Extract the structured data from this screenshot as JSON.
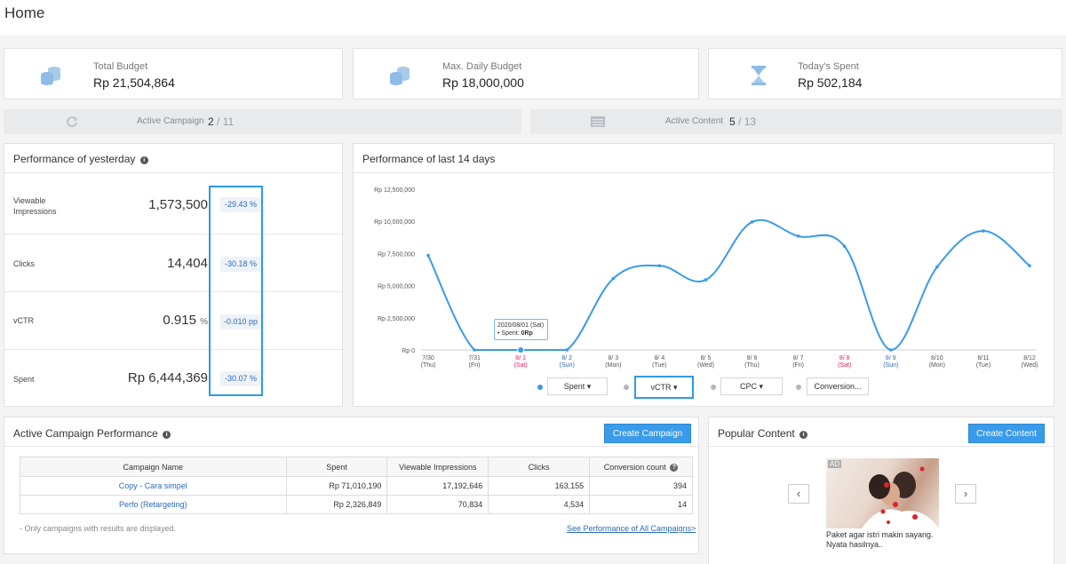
{
  "page": {
    "title": "Home"
  },
  "kpis": {
    "total_budget": {
      "label": "Total Budget",
      "value": "Rp 21,504,864",
      "icon": "coins-icon"
    },
    "max_daily_budget": {
      "label": "Max. Daily Budget",
      "value": "Rp 18,000,000",
      "icon": "coins-icon"
    },
    "todays_spent": {
      "label": "Today's Spent",
      "value": "Rp 502,184",
      "icon": "hourglass-icon"
    }
  },
  "active": {
    "campaign": {
      "label": "Active Campaign",
      "count": "2",
      "total": "/ 11",
      "icon": "refresh-icon"
    },
    "content": {
      "label": "Active Content",
      "count": "5",
      "total": "/ 13",
      "icon": "list-icon"
    }
  },
  "yesterday": {
    "title": "Performance of yesterday",
    "rows": [
      {
        "name": "Viewable Impressions",
        "value": "1,573,500",
        "unit": "",
        "delta": "-29.43 %"
      },
      {
        "name": "Clicks",
        "value": "14,404",
        "unit": "",
        "delta": "-30.18 %"
      },
      {
        "name": "vCTR",
        "value": "0.915",
        "unit": "%",
        "delta": "-0.010 pp"
      },
      {
        "name": "Spent",
        "value": "Rp 6,444,369",
        "unit": "",
        "delta": "-30.07 %"
      }
    ]
  },
  "last14": {
    "title": "Performance of last 14 days",
    "selectors": [
      {
        "label": "Spent ▾",
        "color": "#3a9bea"
      },
      {
        "label": "vCTR ▾",
        "color": "#b0b6c0"
      },
      {
        "label": "CPC ▾",
        "color": "#b0b6c0"
      },
      {
        "label": "Conversion...",
        "color": "#b0b6c0"
      }
    ],
    "tooltip": {
      "date": "2020/08/01 (Sat)",
      "series": "• Spent:",
      "value": "0Rp"
    }
  },
  "chart_data": {
    "type": "line",
    "title": "Performance of last 14 days",
    "xlabel": "",
    "ylabel": "",
    "ylim": [
      0,
      12500000
    ],
    "yticks": [
      "Rp 12,500,000",
      "Rp 10,000,000",
      "Rp 7,500,000",
      "Rp 5,000,000",
      "Rp 2,500,000",
      "Rp 0"
    ],
    "categories": [
      {
        "date": "7/30",
        "day": "(Thu)",
        "color": "#555555"
      },
      {
        "date": "7/31",
        "day": "(Fri)",
        "color": "#555555"
      },
      {
        "date": "8/ 1",
        "day": "(Sat)",
        "color": "#e0245e"
      },
      {
        "date": "8/ 2",
        "day": "(Sun)",
        "color": "#2a6bb8"
      },
      {
        "date": "8/ 3",
        "day": "(Mon)",
        "color": "#555555"
      },
      {
        "date": "8/ 4",
        "day": "(Tue)",
        "color": "#555555"
      },
      {
        "date": "8/ 5",
        "day": "(Wed)",
        "color": "#555555"
      },
      {
        "date": "8/ 6",
        "day": "(Thu)",
        "color": "#555555"
      },
      {
        "date": "8/ 7",
        "day": "(Fri)",
        "color": "#555555"
      },
      {
        "date": "8/ 8",
        "day": "(Sat)",
        "color": "#e0245e"
      },
      {
        "date": "8/ 9",
        "day": "(Sun)",
        "color": "#2a6bb8"
      },
      {
        "date": "8/10",
        "day": "(Mon)",
        "color": "#555555"
      },
      {
        "date": "8/11",
        "day": "(Tue)",
        "color": "#555555"
      },
      {
        "date": "8/12",
        "day": "(Wed)",
        "color": "#555555"
      }
    ],
    "series": [
      {
        "name": "Spent",
        "color": "#3a9bea",
        "values": [
          7350000,
          0,
          0,
          0,
          5550000,
          6550000,
          5450000,
          9950000,
          8850000,
          8050000,
          0,
          6450000,
          9250000,
          6550000
        ]
      }
    ],
    "grid": false
  },
  "campaigns": {
    "title": "Active Campaign Performance",
    "create_label": "Create Campaign",
    "columns": [
      "Campaign Name",
      "Spent",
      "Viewable Impressions",
      "Clicks",
      "Conversion count"
    ],
    "rows": [
      [
        "Copy - Cara simpel",
        "Rp 71,010,190",
        "17,192,646",
        "163,155",
        "394"
      ],
      [
        "Perfo (Retargeting)",
        "Rp 2,326,849",
        "70,834",
        "4,534",
        "14"
      ]
    ],
    "footnote": "- Only campaigns with results are displayed.",
    "see_all": "See Performance of All Campaigns>"
  },
  "popular": {
    "title": "Popular Content",
    "create_label": "Create Content",
    "ad_badge": "AD",
    "caption": "Paket agar istri makin sayang. Nyata hasilnya..",
    "prev": "‹",
    "next": "›"
  }
}
